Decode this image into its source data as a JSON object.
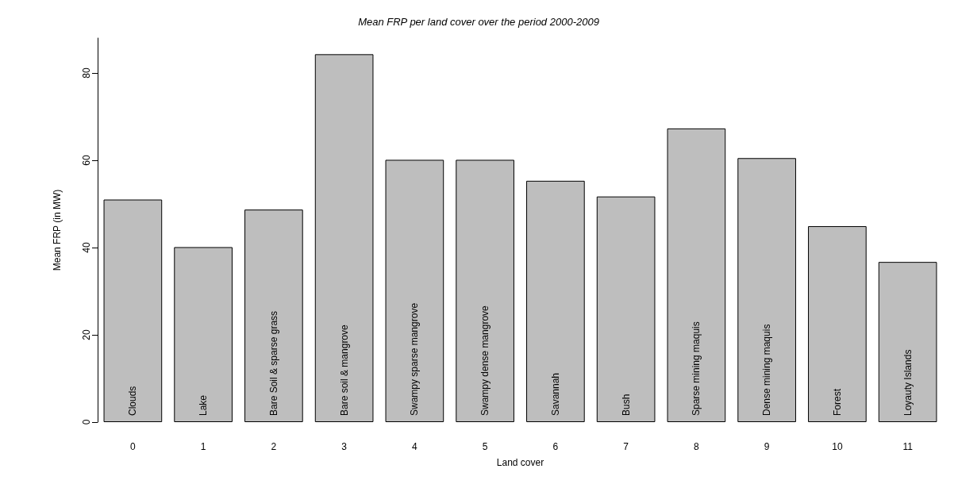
{
  "chart_data": {
    "type": "bar",
    "title": "Mean FRP per land cover over the period 2000-2009",
    "xlabel": "Land cover",
    "ylabel": "Mean FRP (in MW)",
    "categories": [
      "0",
      "1",
      "2",
      "3",
      "4",
      "5",
      "6",
      "7",
      "8",
      "9",
      "10",
      "11"
    ],
    "values": [
      51.0,
      40.1,
      48.7,
      84.3,
      60.1,
      60.1,
      55.3,
      51.7,
      67.3,
      60.5,
      44.9,
      36.7
    ],
    "color": "#bebebe",
    "ylim": [
      0,
      88
    ],
    "yticks": [
      0,
      20,
      40,
      60,
      80
    ],
    "grid": false,
    "annotations": [
      {
        "text": "Clouds",
        "x": "0",
        "y": 0
      },
      {
        "text": "Lake",
        "x": "1",
        "y": 0
      },
      {
        "text": "Bare Soil & sparse grass",
        "x": "2",
        "y": 0
      },
      {
        "text": "Bare soil & mangrove",
        "x": "3",
        "y": 0
      },
      {
        "text": "Swampy sparse mangrove",
        "x": "4",
        "y": 0
      },
      {
        "text": "Swampy dense mangrove",
        "x": "5",
        "y": 0
      },
      {
        "text": "Savannah",
        "x": "6",
        "y": 0
      },
      {
        "text": "Bush",
        "x": "7",
        "y": 0
      },
      {
        "text": "Sparse mining maquis",
        "x": "8",
        "y": 0
      },
      {
        "text": "Dense mining maquis",
        "x": "9",
        "y": 0
      },
      {
        "text": "Forest",
        "x": "10",
        "y": 0
      },
      {
        "text": "Loyauty Islands",
        "x": "11",
        "y": 0
      }
    ]
  }
}
